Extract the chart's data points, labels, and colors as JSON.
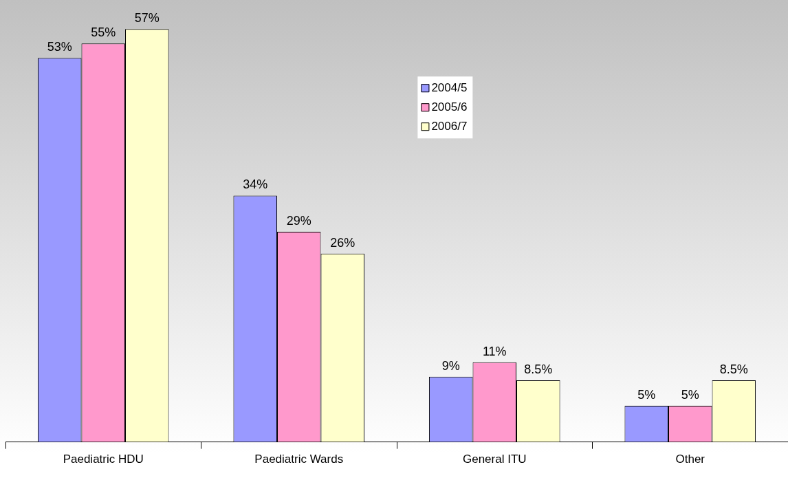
{
  "chart_data": {
    "type": "bar",
    "categories": [
      "Paediatric HDU",
      "Paediatric Wards",
      "General ITU",
      "Other"
    ],
    "series": [
      {
        "name": "2004/5",
        "color": "#9999ff",
        "values": [
          53,
          34,
          9,
          5
        ],
        "value_labels": [
          "53%",
          "34%",
          "9%",
          "5%"
        ]
      },
      {
        "name": "2005/6",
        "color": "#ff99cc",
        "values": [
          55,
          29,
          11,
          5
        ],
        "value_labels": [
          "55%",
          "29%",
          "11%",
          "5%"
        ]
      },
      {
        "name": "2006/7",
        "color": "#ffffcc",
        "values": [
          57,
          26,
          8.5,
          8.5
        ],
        "value_labels": [
          "57%",
          "26%",
          "8.5%",
          "8.5%"
        ]
      }
    ],
    "ylim": [
      0,
      61
    ],
    "legend": "top"
  }
}
